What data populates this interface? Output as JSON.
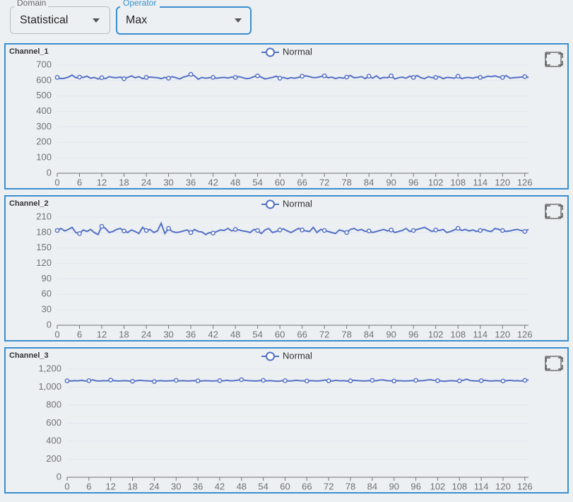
{
  "controls": [
    {
      "label": "Domain",
      "value": "Statistical"
    },
    {
      "label": "Operator",
      "value": "Max"
    }
  ],
  "chart_data": [
    {
      "type": "line",
      "title": "Channel_1",
      "x": [
        0,
        1,
        2,
        3,
        4,
        5,
        6,
        7,
        8,
        9,
        10,
        11,
        12,
        13,
        14,
        15,
        16,
        17,
        18,
        19,
        20,
        21,
        22,
        23,
        24,
        25,
        26,
        27,
        28,
        29,
        30,
        31,
        32,
        33,
        34,
        35,
        36,
        37,
        38,
        39,
        40,
        41,
        42,
        43,
        44,
        45,
        46,
        47,
        48,
        49,
        50,
        51,
        52,
        53,
        54,
        55,
        56,
        57,
        58,
        59,
        60,
        61,
        62,
        63,
        64,
        65,
        66,
        67,
        68,
        69,
        70,
        71,
        72,
        73,
        74,
        75,
        76,
        77,
        78,
        79,
        80,
        81,
        82,
        83,
        84,
        85,
        86,
        87,
        88,
        89,
        90,
        91,
        92,
        93,
        94,
        95,
        96,
        97,
        98,
        99,
        100,
        101,
        102,
        103,
        104,
        105,
        106,
        107,
        108,
        109,
        110,
        111,
        112,
        113,
        114,
        115,
        116,
        117,
        118,
        119,
        120,
        121,
        122,
        123,
        124,
        125,
        126,
        127
      ],
      "series": [
        {
          "name": "Normal",
          "color": "#5470c6",
          "values": [
            620,
            612,
            615,
            622,
            635,
            618,
            622,
            620,
            628,
            615,
            620,
            610,
            618,
            612,
            625,
            620,
            618,
            622,
            612,
            620,
            630,
            618,
            625,
            612,
            620,
            622,
            620,
            618,
            612,
            620,
            615,
            625,
            618,
            610,
            622,
            628,
            640,
            630,
            608,
            620,
            615,
            618,
            620,
            615,
            618,
            620,
            616,
            622,
            620,
            625,
            618,
            612,
            615,
            625,
            630,
            622,
            610,
            615,
            620,
            628,
            615,
            620,
            612,
            618,
            615,
            620,
            628,
            630,
            625,
            618,
            620,
            625,
            630,
            618,
            622,
            612,
            620,
            615,
            622,
            632,
            618,
            620,
            625,
            612,
            628,
            615,
            630,
            612,
            620,
            618,
            630,
            610,
            618,
            622,
            615,
            628,
            620,
            632,
            618,
            612,
            625,
            618,
            620,
            625,
            612,
            620,
            618,
            615,
            628,
            612,
            618,
            620,
            615,
            622,
            620,
            618,
            628,
            625,
            630,
            622,
            620,
            632,
            615,
            618,
            620,
            622,
            625,
            620
          ]
        }
      ],
      "xlim": [
        0,
        127
      ],
      "xticks": [
        0,
        6,
        12,
        18,
        24,
        30,
        36,
        42,
        48,
        54,
        60,
        66,
        72,
        78,
        84,
        90,
        96,
        102,
        108,
        114,
        120,
        126
      ],
      "ylim": [
        0,
        700
      ],
      "yticks": [
        0,
        100,
        200,
        300,
        400,
        500,
        600,
        700
      ],
      "grid": true
    },
    {
      "type": "line",
      "title": "Channel_2",
      "x": [
        0,
        1,
        2,
        3,
        4,
        5,
        6,
        7,
        8,
        9,
        10,
        11,
        12,
        13,
        14,
        15,
        16,
        17,
        18,
        19,
        20,
        21,
        22,
        23,
        24,
        25,
        26,
        27,
        28,
        29,
        30,
        31,
        32,
        33,
        34,
        35,
        36,
        37,
        38,
        39,
        40,
        41,
        42,
        43,
        44,
        45,
        46,
        47,
        48,
        49,
        50,
        51,
        52,
        53,
        54,
        55,
        56,
        57,
        58,
        59,
        60,
        61,
        62,
        63,
        64,
        65,
        66,
        67,
        68,
        69,
        70,
        71,
        72,
        73,
        74,
        75,
        76,
        77,
        78,
        79,
        80,
        81,
        82,
        83,
        84,
        85,
        86,
        87,
        88,
        89,
        90,
        91,
        92,
        93,
        94,
        95,
        96,
        97,
        98,
        99,
        100,
        101,
        102,
        103,
        104,
        105,
        106,
        107,
        108,
        109,
        110,
        111,
        112,
        113,
        114,
        115,
        116,
        117,
        118,
        119,
        120,
        121,
        122,
        123,
        124,
        125,
        126,
        127
      ],
      "series": [
        {
          "name": "Normal",
          "color": "#5470c6",
          "values": [
            184,
            188,
            183,
            186,
            190,
            180,
            178,
            185,
            182,
            186,
            180,
            176,
            192,
            188,
            180,
            182,
            186,
            188,
            183,
            180,
            185,
            182,
            178,
            190,
            184,
            186,
            180,
            183,
            198,
            178,
            188,
            182,
            180,
            181,
            183,
            185,
            180,
            186,
            182,
            181,
            176,
            180,
            179,
            182,
            185,
            184,
            188,
            183,
            186,
            185,
            183,
            182,
            180,
            186,
            184,
            178,
            185,
            188,
            180,
            182,
            185,
            187,
            183,
            180,
            184,
            188,
            185,
            183,
            182,
            190,
            180,
            186,
            184,
            182,
            180,
            178,
            185,
            183,
            180,
            186,
            188,
            184,
            186,
            182,
            183,
            180,
            182,
            184,
            186,
            183,
            185,
            180,
            182,
            184,
            188,
            182,
            184,
            186,
            188,
            190,
            186,
            182,
            185,
            184,
            186,
            180,
            182,
            185,
            188,
            184,
            186,
            183,
            185,
            182,
            184,
            186,
            183,
            182,
            188,
            186,
            184,
            182,
            183,
            185,
            186,
            184,
            182,
            186
          ]
        }
      ],
      "xlim": [
        0,
        127
      ],
      "xticks": [
        0,
        6,
        12,
        18,
        24,
        30,
        36,
        42,
        48,
        54,
        60,
        66,
        72,
        78,
        84,
        90,
        96,
        102,
        108,
        114,
        120,
        126
      ],
      "ylim": [
        0,
        210
      ],
      "yticks": [
        0,
        30,
        60,
        90,
        120,
        150,
        180,
        210
      ],
      "grid": true
    },
    {
      "type": "line",
      "title": "Channel_3",
      "x": [
        0,
        1,
        2,
        3,
        4,
        5,
        6,
        7,
        8,
        9,
        10,
        11,
        12,
        13,
        14,
        15,
        16,
        17,
        18,
        19,
        20,
        21,
        22,
        23,
        24,
        25,
        26,
        27,
        28,
        29,
        30,
        31,
        32,
        33,
        34,
        35,
        36,
        37,
        38,
        39,
        40,
        41,
        42,
        43,
        44,
        45,
        46,
        47,
        48,
        49,
        50,
        51,
        52,
        53,
        54,
        55,
        56,
        57,
        58,
        59,
        60,
        61,
        62,
        63,
        64,
        65,
        66,
        67,
        68,
        69,
        70,
        71,
        72,
        73,
        74,
        75,
        76,
        77,
        78,
        79,
        80,
        81,
        82,
        83,
        84,
        85,
        86,
        87,
        88,
        89,
        90,
        91,
        92,
        93,
        94,
        95,
        96,
        97,
        98,
        99,
        100,
        101,
        102,
        103,
        104,
        105,
        106,
        107,
        108,
        109,
        110,
        111,
        112,
        113,
        114,
        115,
        116,
        117,
        118,
        119,
        120,
        121,
        122,
        123,
        124,
        125,
        126,
        127
      ],
      "series": [
        {
          "name": "Normal",
          "color": "#5470c6",
          "values": [
            1070,
            1068,
            1072,
            1070,
            1075,
            1068,
            1072,
            1080,
            1070,
            1068,
            1072,
            1070,
            1078,
            1072,
            1068,
            1070,
            1072,
            1068,
            1065,
            1070,
            1075,
            1072,
            1070,
            1068,
            1062,
            1070,
            1072,
            1068,
            1070,
            1072,
            1075,
            1070,
            1072,
            1068,
            1070,
            1072,
            1070,
            1068,
            1072,
            1070,
            1068,
            1070,
            1072,
            1070,
            1075,
            1070,
            1072,
            1078,
            1082,
            1075,
            1072,
            1070,
            1068,
            1072,
            1075,
            1070,
            1072,
            1068,
            1065,
            1070,
            1072,
            1068,
            1070,
            1075,
            1072,
            1070,
            1068,
            1072,
            1070,
            1068,
            1072,
            1078,
            1070,
            1068,
            1075,
            1070,
            1072,
            1068,
            1070,
            1075,
            1072,
            1070,
            1068,
            1072,
            1075,
            1070,
            1078,
            1080,
            1072,
            1070,
            1068,
            1072,
            1070,
            1068,
            1070,
            1072,
            1075,
            1070,
            1072,
            1078,
            1082,
            1075,
            1072,
            1068,
            1065,
            1070,
            1072,
            1068,
            1070,
            1075,
            1088,
            1072,
            1070,
            1068,
            1072,
            1075,
            1070,
            1068,
            1072,
            1070,
            1068,
            1072,
            1075,
            1070,
            1072,
            1068,
            1075,
            1080
          ]
        }
      ],
      "xlim": [
        0,
        127
      ],
      "xticks": [
        0,
        6,
        12,
        18,
        24,
        30,
        36,
        42,
        48,
        54,
        60,
        66,
        72,
        78,
        84,
        90,
        96,
        102,
        108,
        114,
        120,
        126
      ],
      "ylim": [
        0,
        1200
      ],
      "yticks": [
        0,
        200,
        400,
        600,
        800,
        {
          "value": 1000,
          "label": "1,000"
        },
        {
          "value": 1200,
          "label": "1,200"
        }
      ],
      "grid": true
    }
  ]
}
